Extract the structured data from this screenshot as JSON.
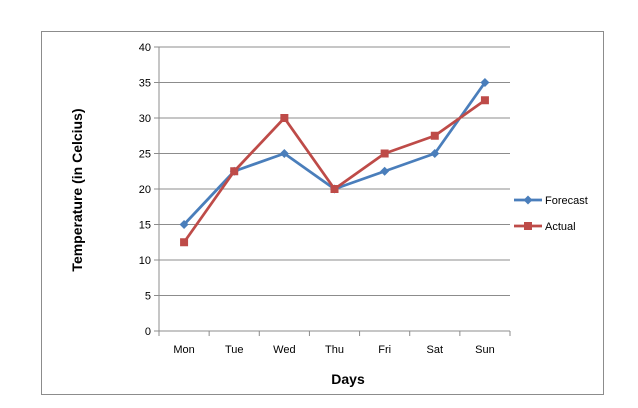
{
  "chart_data": {
    "type": "line",
    "title": "",
    "xlabel": "Days",
    "ylabel": "Temperature (in Celcius)",
    "categories": [
      "Mon",
      "Tue",
      "Wed",
      "Thu",
      "Fri",
      "Sat",
      "Sun"
    ],
    "ylim": [
      0,
      40
    ],
    "yticks": [
      "0",
      "5",
      "10",
      "15",
      "20",
      "25",
      "30",
      "35",
      "40"
    ],
    "grid": true,
    "legend_position": "right",
    "series": [
      {
        "name": "Forecast",
        "values": [
          15,
          22.5,
          25,
          20,
          22.5,
          25,
          35
        ],
        "color": "#4a7ebb",
        "marker": "diamond"
      },
      {
        "name": "Actual",
        "values": [
          12.5,
          22.5,
          30,
          20,
          25,
          27.5,
          32.5
        ],
        "color": "#be4b48",
        "marker": "square"
      }
    ]
  }
}
